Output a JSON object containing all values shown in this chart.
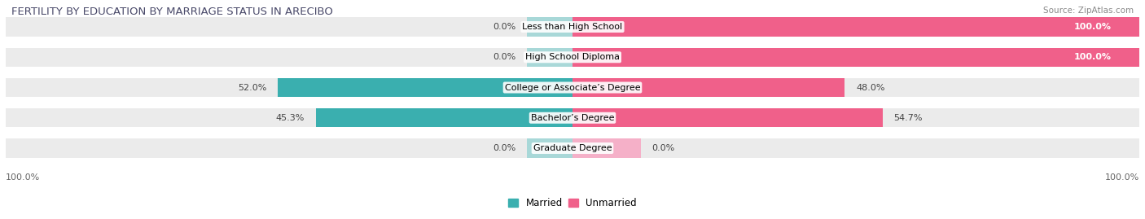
{
  "title": "FERTILITY BY EDUCATION BY MARRIAGE STATUS IN ARECIBO",
  "source": "Source: ZipAtlas.com",
  "categories": [
    "Less than High School",
    "High School Diploma",
    "College or Associate’s Degree",
    "Bachelor’s Degree",
    "Graduate Degree"
  ],
  "married_values": [
    0.0,
    0.0,
    52.0,
    45.3,
    0.0
  ],
  "unmarried_values": [
    100.0,
    100.0,
    48.0,
    54.7,
    0.0
  ],
  "married_color_full": "#3AAFAF",
  "married_color_zero": "#A8D8D8",
  "unmarried_color_full": "#F0608A",
  "unmarried_color_zero": "#F5B0C8",
  "bar_bg_color": "#EBEBEB",
  "bar_height": 0.62,
  "figsize": [
    14.06,
    2.69
  ],
  "dpi": 100,
  "label_fontsize": 8.0,
  "title_fontsize": 9.5,
  "source_fontsize": 7.5,
  "legend_fontsize": 8.5,
  "bottom_label": "100.0%",
  "bottom_right_label": "100.0%"
}
